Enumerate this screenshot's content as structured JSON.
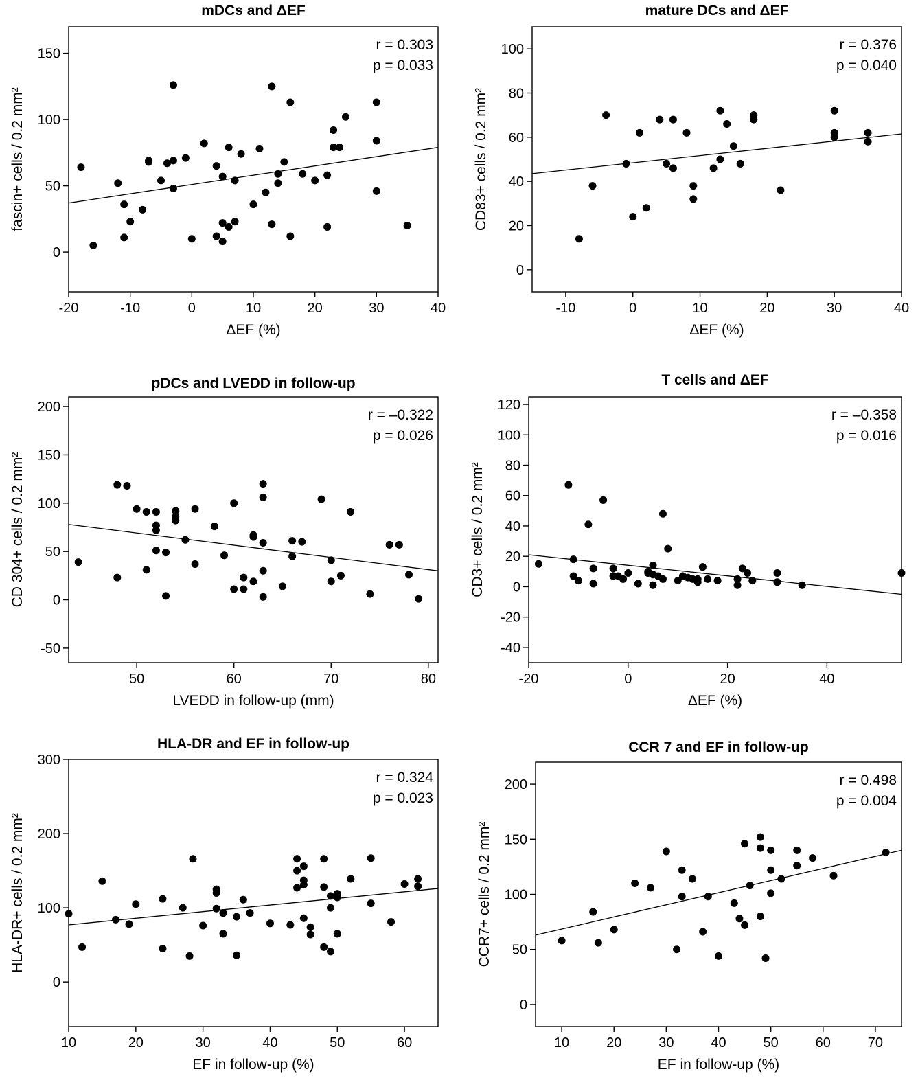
{
  "chart_data": [
    {
      "type": "scatter",
      "title": "mDCs and ΔEF",
      "xlabel": "ΔEF (%)",
      "ylabel": "fascin+ cells / 0.2 mm²",
      "xlim": [
        -20,
        40
      ],
      "ylim": [
        -30,
        170
      ],
      "xticks": [
        -20,
        -10,
        0,
        10,
        20,
        30,
        40
      ],
      "yticks": [
        0,
        50,
        100,
        150
      ],
      "grid": false,
      "r_text": "r = 0.303",
      "p_text": "p = 0.033",
      "trendline": {
        "x": [
          -20,
          40
        ],
        "y": [
          37,
          79
        ]
      },
      "points": [
        [
          -18,
          64
        ],
        [
          -16,
          5
        ],
        [
          -12,
          52
        ],
        [
          -11,
          36
        ],
        [
          -11,
          11
        ],
        [
          -10,
          23
        ],
        [
          -8,
          32
        ],
        [
          -7,
          69
        ],
        [
          -7,
          68
        ],
        [
          -5,
          54
        ],
        [
          -4,
          67
        ],
        [
          -3,
          69
        ],
        [
          -3,
          48
        ],
        [
          -3,
          126
        ],
        [
          -1,
          71
        ],
        [
          0,
          10
        ],
        [
          2,
          82
        ],
        [
          4,
          65
        ],
        [
          4,
          12
        ],
        [
          5,
          57
        ],
        [
          5,
          22
        ],
        [
          5,
          8
        ],
        [
          6,
          79
        ],
        [
          6,
          19
        ],
        [
          7,
          54
        ],
        [
          7,
          23
        ],
        [
          8,
          74
        ],
        [
          10,
          36
        ],
        [
          11,
          78
        ],
        [
          12,
          45
        ],
        [
          13,
          125
        ],
        [
          13,
          21
        ],
        [
          14,
          59
        ],
        [
          14,
          52
        ],
        [
          15,
          68
        ],
        [
          16,
          113
        ],
        [
          16,
          12
        ],
        [
          18,
          59
        ],
        [
          20,
          54
        ],
        [
          22,
          58
        ],
        [
          22,
          19
        ],
        [
          23,
          92
        ],
        [
          23,
          79
        ],
        [
          24,
          79
        ],
        [
          25,
          102
        ],
        [
          30,
          113
        ],
        [
          30,
          84
        ],
        [
          30,
          46
        ],
        [
          35,
          20
        ]
      ]
    },
    {
      "type": "scatter",
      "title": "mature DCs and ΔEF",
      "xlabel": "ΔEF (%)",
      "ylabel": "CD83+ cells / 0.2 mm²",
      "xlim": [
        -15,
        40
      ],
      "ylim": [
        -10,
        110
      ],
      "xticks": [
        -10,
        0,
        10,
        20,
        30,
        40
      ],
      "yticks": [
        0,
        20,
        40,
        60,
        80,
        100
      ],
      "grid": false,
      "r_text": "r = 0.376",
      "p_text": "p = 0.040",
      "trendline": {
        "x": [
          -15,
          40
        ],
        "y": [
          43.5,
          61.5
        ]
      },
      "points": [
        [
          -8,
          14
        ],
        [
          -6,
          38
        ],
        [
          -4,
          70
        ],
        [
          -1,
          48
        ],
        [
          0,
          24
        ],
        [
          1,
          62
        ],
        [
          2,
          28
        ],
        [
          4,
          68
        ],
        [
          5,
          48
        ],
        [
          6,
          46
        ],
        [
          6,
          68
        ],
        [
          8,
          62
        ],
        [
          9,
          38
        ],
        [
          9,
          32
        ],
        [
          12,
          46
        ],
        [
          13,
          72
        ],
        [
          13,
          50
        ],
        [
          14,
          66
        ],
        [
          15,
          56
        ],
        [
          16,
          48
        ],
        [
          18,
          70
        ],
        [
          18,
          68
        ],
        [
          22,
          36
        ],
        [
          30,
          72
        ],
        [
          30,
          62
        ],
        [
          30,
          60
        ],
        [
          35,
          62
        ],
        [
          35,
          58
        ]
      ]
    },
    {
      "type": "scatter",
      "title": "pDCs and LVEDD in follow-up",
      "xlabel": "LVEDD in follow-up (mm)",
      "ylabel": "CD 304+ cells / 0.2 mm²",
      "xlim": [
        43,
        81
      ],
      "ylim": [
        -65,
        210
      ],
      "xticks": [
        50,
        60,
        70,
        80
      ],
      "yticks": [
        -50,
        0,
        50,
        100,
        150,
        200
      ],
      "grid": false,
      "r_text": "r = –0.322",
      "p_text": "p = 0.026",
      "trendline": {
        "x": [
          43,
          81
        ],
        "y": [
          78,
          30
        ]
      },
      "points": [
        [
          44,
          39
        ],
        [
          48,
          119
        ],
        [
          48,
          23
        ],
        [
          49,
          118
        ],
        [
          50,
          94
        ],
        [
          51,
          91
        ],
        [
          51,
          31
        ],
        [
          52,
          91
        ],
        [
          52,
          77
        ],
        [
          52,
          72
        ],
        [
          52,
          51
        ],
        [
          53,
          49
        ],
        [
          53,
          4
        ],
        [
          54,
          92
        ],
        [
          54,
          86
        ],
        [
          54,
          82
        ],
        [
          55,
          62
        ],
        [
          56,
          94
        ],
        [
          56,
          37
        ],
        [
          58,
          76
        ],
        [
          59,
          46
        ],
        [
          60,
          100
        ],
        [
          60,
          11
        ],
        [
          61,
          23
        ],
        [
          61,
          11
        ],
        [
          62,
          67
        ],
        [
          62,
          65
        ],
        [
          62,
          19
        ],
        [
          63,
          120
        ],
        [
          63,
          106
        ],
        [
          63,
          59
        ],
        [
          63,
          30
        ],
        [
          63,
          3
        ],
        [
          65,
          14
        ],
        [
          66,
          61
        ],
        [
          66,
          45
        ],
        [
          67,
          60
        ],
        [
          69,
          104
        ],
        [
          70,
          41
        ],
        [
          70,
          19
        ],
        [
          71,
          25
        ],
        [
          72,
          91
        ],
        [
          74,
          6
        ],
        [
          76,
          57
        ],
        [
          77,
          57
        ],
        [
          78,
          26
        ],
        [
          79,
          1
        ]
      ]
    },
    {
      "type": "scatter",
      "title": "T cells and  ΔEF",
      "xlabel": "ΔEF (%)",
      "ylabel": "CD3+ cells / 0.2 mm²",
      "xlim": [
        -20,
        55
      ],
      "ylim": [
        -50,
        125
      ],
      "xticks": [
        -20,
        0,
        20,
        40
      ],
      "yticks": [
        -40,
        -20,
        0,
        20,
        40,
        60,
        80,
        100,
        120
      ],
      "grid": false,
      "r_text": "r = –0.358",
      "p_text": "p = 0.016",
      "trendline": {
        "x": [
          -20,
          55
        ],
        "y": [
          21,
          -5
        ]
      },
      "points": [
        [
          -18,
          15
        ],
        [
          -12,
          67
        ],
        [
          -11,
          18
        ],
        [
          -11,
          7
        ],
        [
          -10,
          4
        ],
        [
          -8,
          41
        ],
        [
          -7,
          12
        ],
        [
          -7,
          2
        ],
        [
          -5,
          57
        ],
        [
          -3,
          12
        ],
        [
          -3,
          7
        ],
        [
          -2,
          7
        ],
        [
          -1,
          5
        ],
        [
          0,
          9
        ],
        [
          2,
          2
        ],
        [
          4,
          10
        ],
        [
          4,
          9
        ],
        [
          5,
          14
        ],
        [
          5,
          8
        ],
        [
          5,
          1
        ],
        [
          6,
          7
        ],
        [
          7,
          5
        ],
        [
          7,
          48
        ],
        [
          8,
          25
        ],
        [
          10,
          4
        ],
        [
          11,
          7
        ],
        [
          12,
          6
        ],
        [
          13,
          5
        ],
        [
          14,
          5
        ],
        [
          14,
          3
        ],
        [
          15,
          13
        ],
        [
          16,
          5
        ],
        [
          18,
          4
        ],
        [
          22,
          5
        ],
        [
          22,
          1
        ],
        [
          23,
          12
        ],
        [
          24,
          9
        ],
        [
          25,
          4
        ],
        [
          30,
          9
        ],
        [
          30,
          3
        ],
        [
          35,
          1
        ],
        [
          55,
          9
        ]
      ]
    },
    {
      "type": "scatter",
      "title": "HLA-DR and EF in follow-up",
      "xlabel": "EF in follow-up (%)",
      "ylabel": "HLA-DR+ cells / 0.2 mm²",
      "xlim": [
        10,
        65
      ],
      "ylim": [
        -60,
        300
      ],
      "xticks": [
        10,
        20,
        30,
        40,
        50,
        60
      ],
      "yticks": [
        0,
        100,
        200,
        300
      ],
      "grid": false,
      "r_text": "r = 0.324",
      "p_text": "p = 0.023",
      "trendline": {
        "x": [
          10,
          65
        ],
        "y": [
          77,
          126
        ]
      },
      "points": [
        [
          10,
          92
        ],
        [
          12,
          47
        ],
        [
          15,
          136
        ],
        [
          17,
          84
        ],
        [
          19,
          78
        ],
        [
          20,
          105
        ],
        [
          24,
          112
        ],
        [
          24,
          45
        ],
        [
          27,
          100
        ],
        [
          28,
          35
        ],
        [
          28.5,
          166
        ],
        [
          30,
          76
        ],
        [
          32,
          125
        ],
        [
          32,
          120
        ],
        [
          32,
          99
        ],
        [
          33,
          93
        ],
        [
          33,
          65
        ],
        [
          35,
          88
        ],
        [
          35,
          36
        ],
        [
          36,
          111
        ],
        [
          37,
          93
        ],
        [
          40,
          79
        ],
        [
          43,
          77
        ],
        [
          44,
          166
        ],
        [
          44,
          150
        ],
        [
          44,
          127
        ],
        [
          45,
          156
        ],
        [
          45,
          137
        ],
        [
          45,
          131
        ],
        [
          45,
          86
        ],
        [
          46,
          74
        ],
        [
          46,
          64
        ],
        [
          48,
          166
        ],
        [
          48,
          128
        ],
        [
          48,
          47
        ],
        [
          49,
          116
        ],
        [
          49,
          100
        ],
        [
          49,
          41
        ],
        [
          50,
          119
        ],
        [
          50,
          114
        ],
        [
          50,
          65
        ],
        [
          52,
          139
        ],
        [
          55,
          167
        ],
        [
          55,
          106
        ],
        [
          58,
          81
        ],
        [
          60,
          132
        ],
        [
          62,
          139
        ],
        [
          62,
          129
        ]
      ]
    },
    {
      "type": "scatter",
      "title": "CCR 7 and EF in follow-up",
      "xlabel": "EF in follow-up (%)",
      "ylabel": "CCR7+ cells / 0.2 mm²",
      "xlim": [
        5,
        75
      ],
      "ylim": [
        -20,
        220
      ],
      "xticks": [
        10,
        20,
        30,
        40,
        50,
        60,
        70
      ],
      "yticks": [
        0,
        50,
        100,
        150,
        200
      ],
      "grid": false,
      "r_text": "r = 0.498",
      "p_text": "p = 0.004",
      "trendline": {
        "x": [
          5,
          75
        ],
        "y": [
          63,
          140
        ]
      },
      "points": [
        [
          10,
          58
        ],
        [
          16,
          84
        ],
        [
          17,
          56
        ],
        [
          20,
          68
        ],
        [
          24,
          110
        ],
        [
          27,
          106
        ],
        [
          30,
          139
        ],
        [
          32,
          50
        ],
        [
          33,
          122
        ],
        [
          33,
          98
        ],
        [
          35,
          114
        ],
        [
          37,
          66
        ],
        [
          38,
          98
        ],
        [
          40,
          44
        ],
        [
          43,
          92
        ],
        [
          44,
          78
        ],
        [
          45,
          146
        ],
        [
          45,
          72
        ],
        [
          46,
          108
        ],
        [
          48,
          152
        ],
        [
          48,
          142
        ],
        [
          48,
          80
        ],
        [
          49,
          42
        ],
        [
          50,
          140
        ],
        [
          50,
          122
        ],
        [
          50,
          101
        ],
        [
          52,
          114
        ],
        [
          55,
          140
        ],
        [
          55,
          126
        ],
        [
          58,
          133
        ],
        [
          62,
          117
        ],
        [
          72,
          138
        ]
      ]
    }
  ]
}
